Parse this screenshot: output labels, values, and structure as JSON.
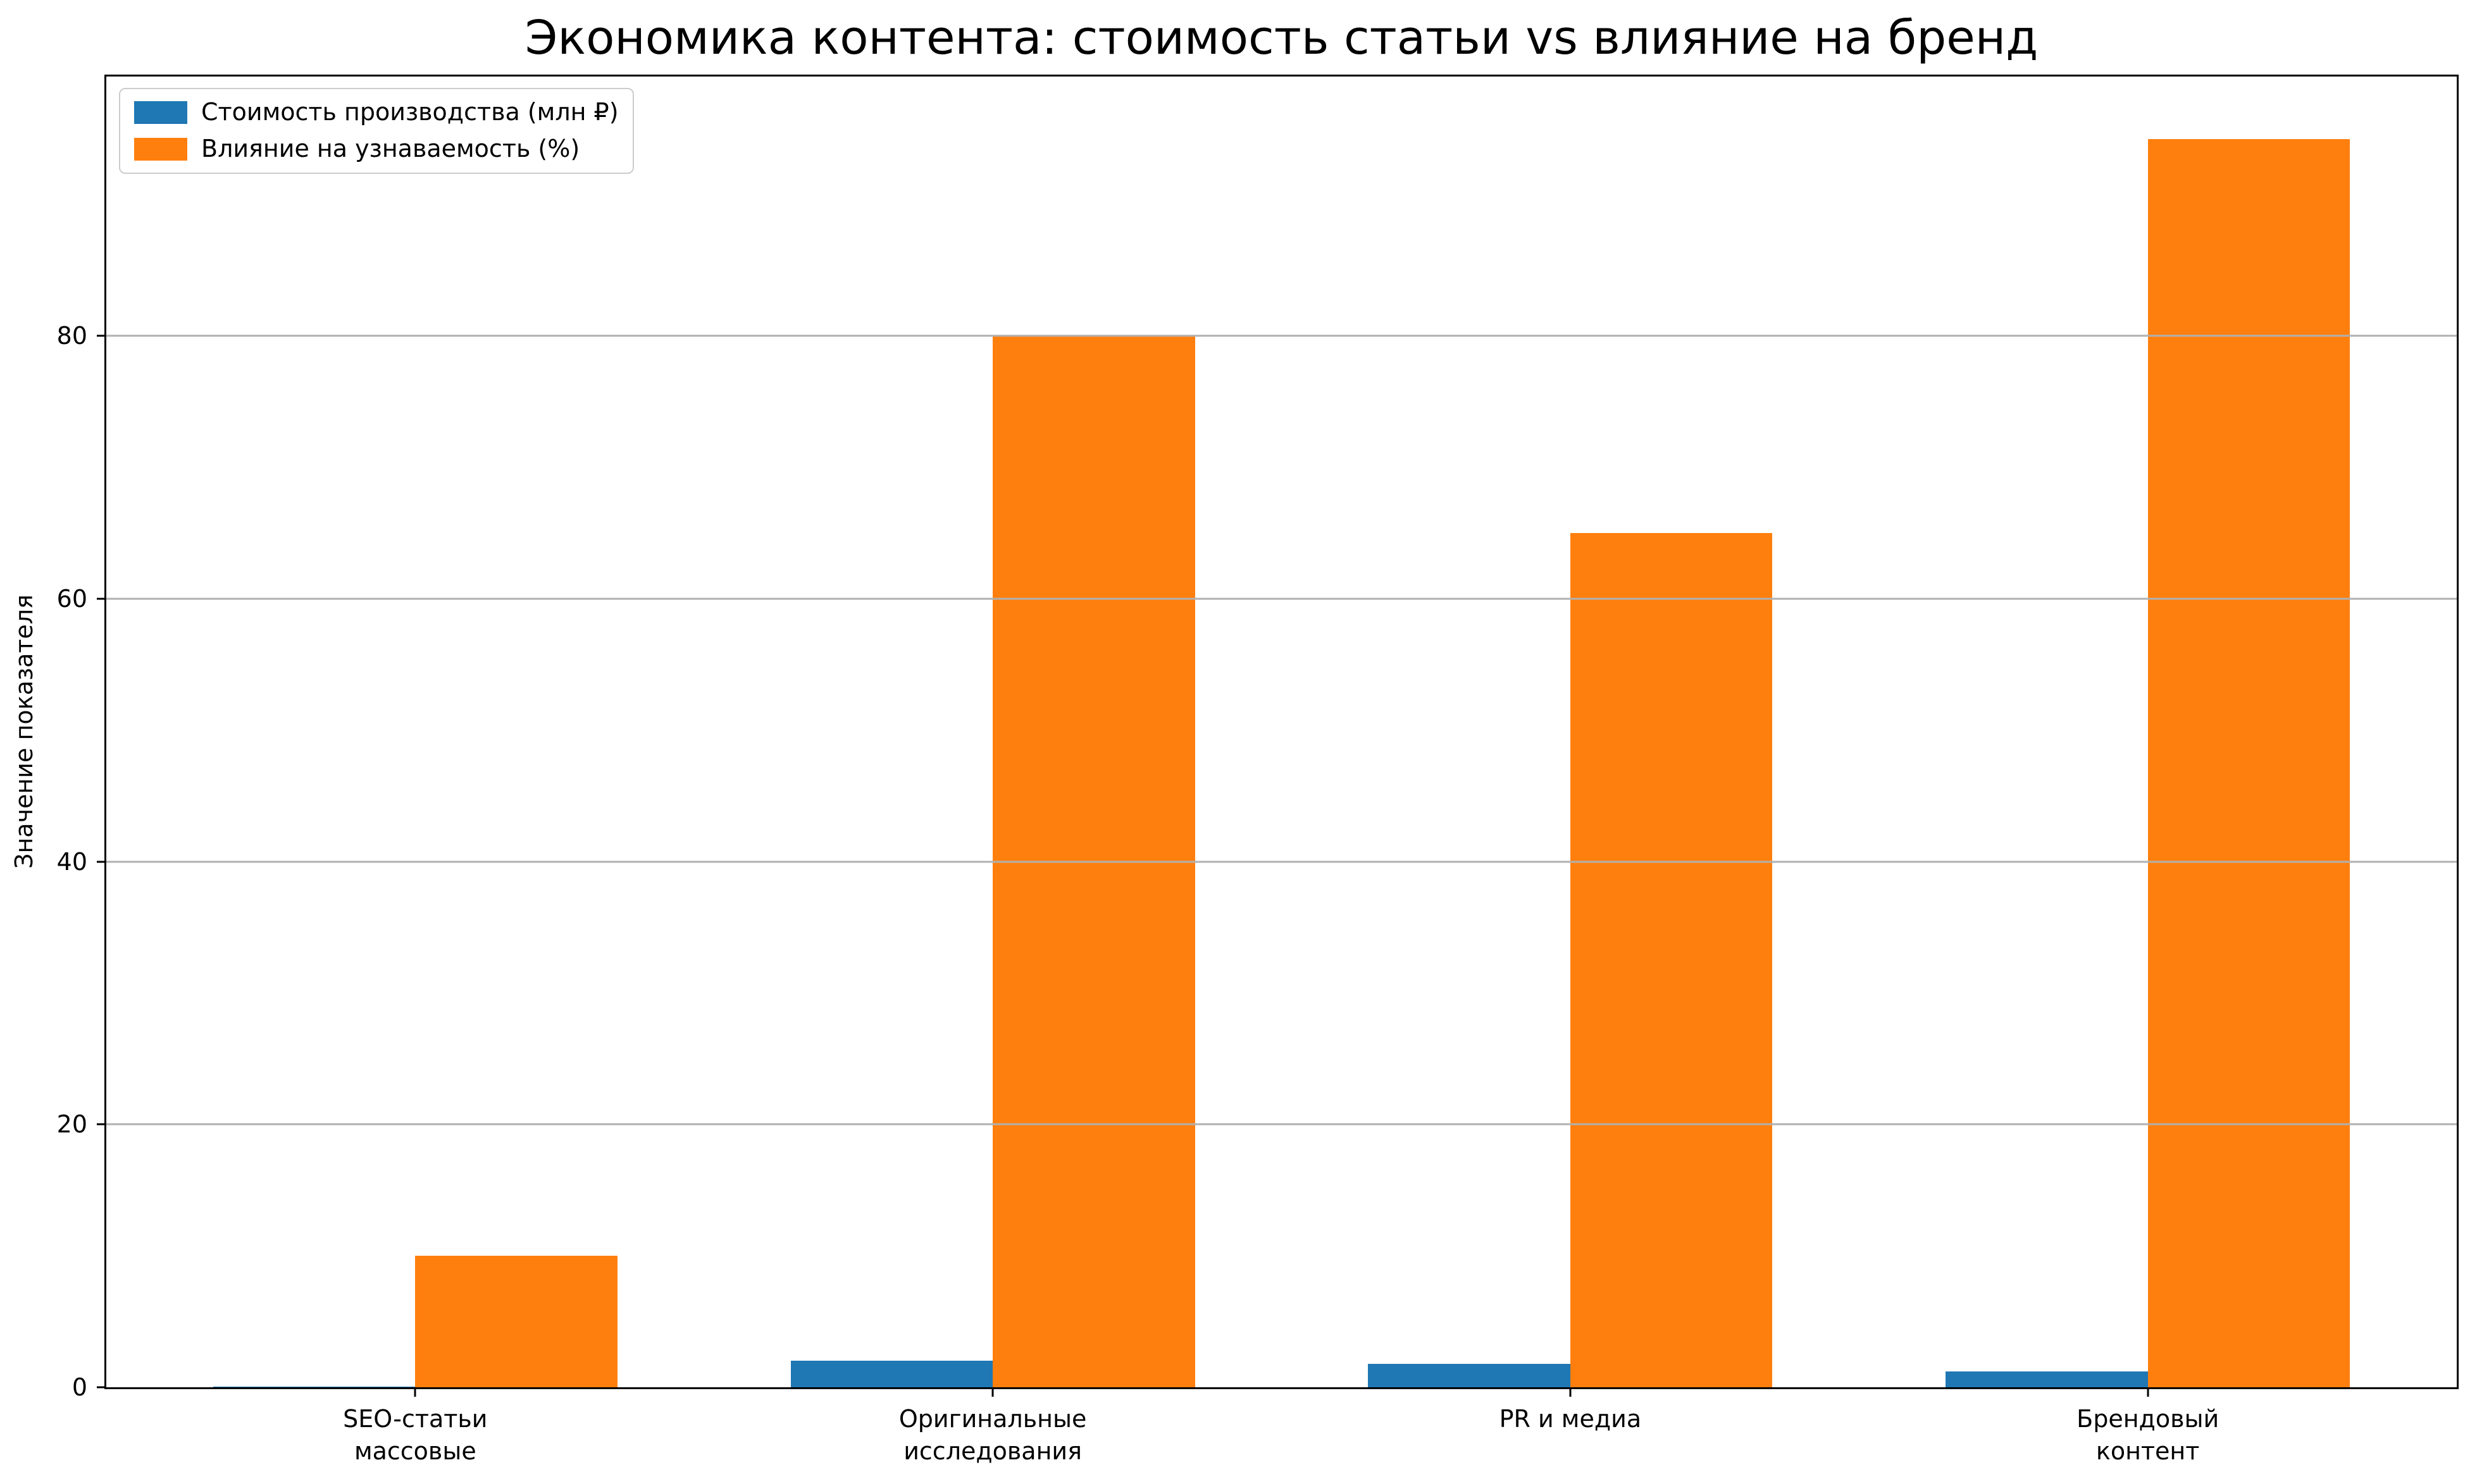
{
  "chart_data": {
    "type": "bar",
    "title": "Экономика контента: стоимость статьи vs влияние на бренд",
    "ylabel": "Значение показателя",
    "xlabel": "",
    "categories": [
      "SEO-статьи\nмассовые",
      "Оригинальные\nисследования",
      "PR и медиа",
      "Брендовый\nконтент"
    ],
    "series": [
      {
        "name": "Стоимость производства (млн ₽)",
        "color": "#1f77b4",
        "values": [
          0.05,
          2,
          1.8,
          1.2
        ]
      },
      {
        "name": "Влияние на узнаваемость (%)",
        "color": "#ff7f0e",
        "values": [
          10,
          80,
          65,
          95
        ]
      }
    ],
    "yticks": [
      0,
      20,
      40,
      60,
      80
    ],
    "ylim": [
      0,
      99.75
    ],
    "xlim": [
      -0.535,
      3.535
    ],
    "bar_width": 0.35,
    "grid": "horizontal",
    "grid_color": "#b0b0b0",
    "legend_position": "upper-left",
    "background_color": "#ffffff",
    "axis_color": "#000000"
  }
}
